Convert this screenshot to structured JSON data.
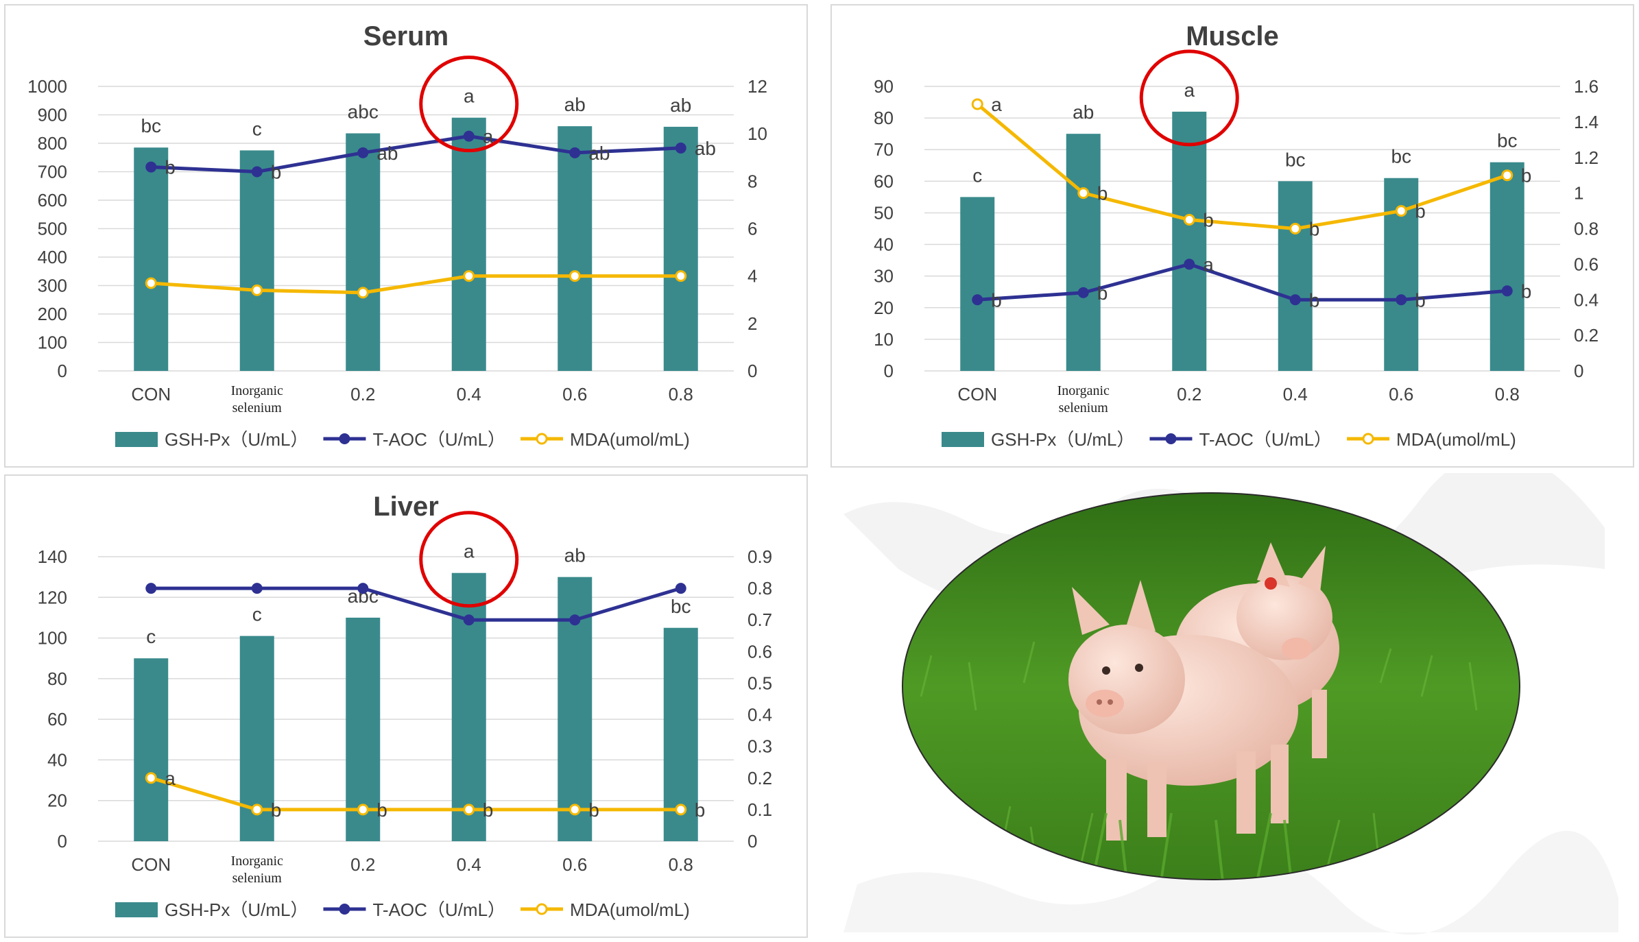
{
  "chart_data": [
    {
      "type": "bar",
      "title": "Serum",
      "categories": [
        "CON",
        "Inorganic\nselenium",
        "0.2",
        "0.4",
        "0.6",
        "0.8"
      ],
      "ylim": [
        0,
        1000
      ],
      "yticks": [
        0,
        100,
        200,
        300,
        400,
        500,
        600,
        700,
        800,
        900,
        1000
      ],
      "y2lim": [
        0,
        12
      ],
      "y2ticks": [
        0,
        2,
        4,
        6,
        8,
        10,
        12
      ],
      "series": [
        {
          "name": "GSH-Px（U/mL）",
          "type": "bar",
          "axis": "left",
          "color": "#3a8a8c",
          "values": [
            785,
            775,
            835,
            890,
            860,
            858
          ],
          "labels": [
            "bc",
            "c",
            "abc",
            "a",
            "ab",
            "ab"
          ]
        },
        {
          "name": "T-AOC（U/mL）",
          "type": "line",
          "axis": "right",
          "color": "#2e3192",
          "marker": "filled",
          "values": [
            8.6,
            8.4,
            9.2,
            9.9,
            9.2,
            9.4
          ],
          "labels": [
            "b",
            "b",
            "ab",
            "a",
            "ab",
            "ab"
          ]
        },
        {
          "name": "MDA(umol/mL)",
          "type": "line",
          "axis": "right",
          "color": "#f5b800",
          "marker": "hollow",
          "values": [
            3.7,
            3.4,
            3.3,
            4.0,
            4.0,
            4.0
          ],
          "labels": []
        }
      ],
      "highlight": {
        "category_index": 3,
        "color": "#e00000"
      },
      "grid": true,
      "legend": "bottom"
    },
    {
      "type": "bar",
      "title": "Muscle",
      "categories": [
        "CON",
        "Inorganic\nselenium",
        "0.2",
        "0.4",
        "0.6",
        "0.8"
      ],
      "ylim": [
        0,
        90
      ],
      "yticks": [
        0,
        10,
        20,
        30,
        40,
        50,
        60,
        70,
        80,
        90
      ],
      "y2lim": [
        0,
        1.6
      ],
      "y2ticks": [
        "0",
        "0.2",
        "0.4",
        "0.6",
        "0.8",
        "1",
        "1.2",
        "1.4",
        "1.6"
      ],
      "series": [
        {
          "name": "GSH-Px（U/mL）",
          "type": "bar",
          "axis": "left",
          "color": "#3a8a8c",
          "values": [
            55,
            75,
            82,
            60,
            61,
            66
          ],
          "labels": [
            "c",
            "ab",
            "a",
            "bc",
            "bc",
            "bc"
          ]
        },
        {
          "name": "T-AOC（U/mL）",
          "type": "line",
          "axis": "right",
          "color": "#2e3192",
          "marker": "filled",
          "values": [
            0.4,
            0.44,
            0.6,
            0.4,
            0.4,
            0.45
          ],
          "labels": [
            "b",
            "b",
            "a",
            "b",
            "b",
            "b"
          ]
        },
        {
          "name": "MDA(umol/mL)",
          "type": "line",
          "axis": "right",
          "color": "#f5b800",
          "marker": "hollow",
          "values": [
            1.5,
            1.0,
            0.85,
            0.8,
            0.9,
            1.1
          ],
          "labels": [
            "a",
            "b",
            "b",
            "b",
            "b",
            "b"
          ]
        }
      ],
      "highlight": {
        "category_index": 2,
        "color": "#e00000"
      },
      "grid": true,
      "legend": "bottom"
    },
    {
      "type": "bar",
      "title": "Liver",
      "categories": [
        "CON",
        "Inorganic\nselenium",
        "0.2",
        "0.4",
        "0.6",
        "0.8"
      ],
      "ylim": [
        0,
        140
      ],
      "yticks": [
        0,
        20,
        40,
        60,
        80,
        100,
        120,
        140
      ],
      "y2lim": [
        0,
        0.9
      ],
      "y2ticks": [
        "0",
        "0.1",
        "0.2",
        "0.3",
        "0.4",
        "0.5",
        "0.6",
        "0.7",
        "0.8",
        "0.9"
      ],
      "series": [
        {
          "name": "GSH-Px（U/mL）",
          "type": "bar",
          "axis": "left",
          "color": "#3a8a8c",
          "values": [
            90,
            101,
            110,
            132,
            130,
            105
          ],
          "labels": [
            "c",
            "c",
            "abc",
            "a",
            "ab",
            "bc"
          ]
        },
        {
          "name": "T-AOC（U/mL）",
          "type": "line",
          "axis": "right",
          "color": "#2e3192",
          "marker": "filled",
          "values": [
            0.8,
            0.8,
            0.8,
            0.7,
            0.7,
            0.8
          ],
          "labels": []
        },
        {
          "name": "MDA(umol/mL)",
          "type": "line",
          "axis": "right",
          "color": "#f5b800",
          "marker": "hollow",
          "values": [
            0.2,
            0.1,
            0.1,
            0.1,
            0.1,
            0.1
          ],
          "labels": [
            "a",
            "b",
            "b",
            "b",
            "b",
            "b"
          ]
        }
      ],
      "highlight": {
        "category_index": 3,
        "color": "#e00000"
      },
      "grid": true,
      "legend": "bottom"
    }
  ],
  "photo": {
    "subject": "two piglets on grass",
    "grass_color": "#3f8a1e",
    "pig_color": "#f3d2c4"
  }
}
